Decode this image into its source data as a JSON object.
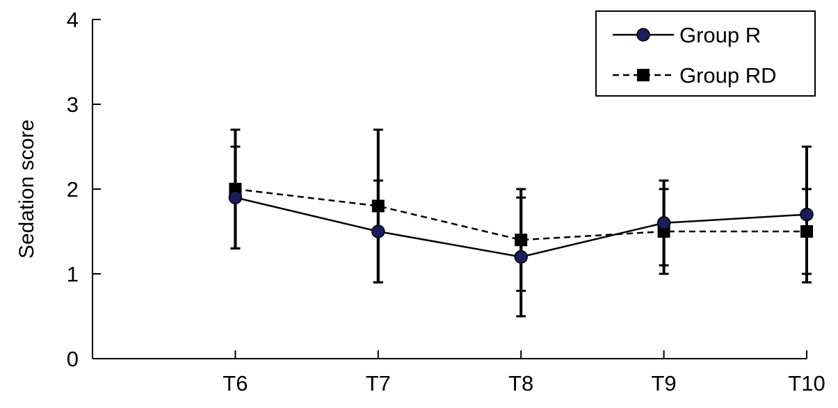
{
  "chart_data": {
    "type": "line",
    "title": "",
    "xlabel": "",
    "ylabel": "Sedation score",
    "categories": [
      "T6",
      "T7",
      "T8",
      "T9",
      "T10"
    ],
    "x_range": [
      5,
      10
    ],
    "ylim": [
      0,
      4
    ],
    "y_ticks": [
      0,
      1,
      2,
      3,
      4
    ],
    "grid": false,
    "legend_position": "top-right",
    "series": [
      {
        "name": "Group R",
        "values": [
          1.9,
          1.5,
          1.2,
          1.6,
          1.7
        ],
        "error": [
          0.6,
          0.6,
          0.7,
          0.5,
          0.8
        ],
        "line_style": "solid",
        "marker": "circle",
        "marker_fill": "#1c1c5a",
        "color": "#000000"
      },
      {
        "name": "Group RD",
        "values": [
          2.0,
          1.8,
          1.4,
          1.5,
          1.5
        ],
        "error": [
          0.7,
          0.9,
          0.6,
          0.5,
          0.5
        ],
        "line_style": "dashed",
        "marker": "square",
        "marker_fill": "#000000",
        "color": "#000000"
      }
    ]
  }
}
